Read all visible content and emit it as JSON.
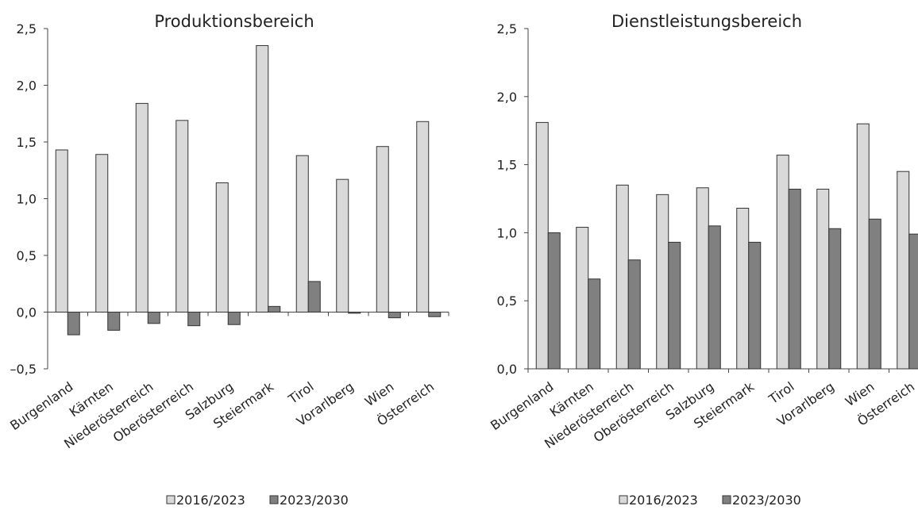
{
  "chart_data": [
    {
      "type": "bar",
      "title": "Produktionsbereich",
      "xlabel": "",
      "ylabel": "",
      "ylim": [
        -0.5,
        2.5
      ],
      "yticks": [
        "–0,5",
        "0,0",
        "0,5",
        "1,0",
        "1,5",
        "2,0",
        "2,5"
      ],
      "yticks_values": [
        -0.5,
        0.0,
        0.5,
        1.0,
        1.5,
        2.0,
        2.5
      ],
      "grid": false,
      "legend": "bottom",
      "categories": [
        "Burgenland",
        "Kärnten",
        "Niederösterreich",
        "Oberösterreich",
        "Salzburg",
        "Steiermark",
        "Tirol",
        "Vorarlberg",
        "Wien",
        "Österreich"
      ],
      "series": [
        {
          "name": "2016/2023",
          "color": "#d9d9d9",
          "values": [
            1.43,
            1.39,
            1.84,
            1.69,
            1.14,
            2.35,
            1.38,
            1.17,
            1.46,
            1.68
          ]
        },
        {
          "name": "2023/2030",
          "color": "#808080",
          "values": [
            -0.2,
            -0.16,
            -0.1,
            -0.12,
            -0.11,
            0.05,
            0.27,
            -0.01,
            -0.05,
            -0.04
          ]
        }
      ]
    },
    {
      "type": "bar",
      "title": "Dienstleistungsbereich",
      "xlabel": "",
      "ylabel": "",
      "ylim": [
        0.0,
        2.5
      ],
      "yticks": [
        "0,0",
        "0,5",
        "1,0",
        "1,5",
        "2,0",
        "2,5"
      ],
      "yticks_values": [
        0.0,
        0.5,
        1.0,
        1.5,
        2.0,
        2.5
      ],
      "grid": false,
      "legend": "bottom",
      "categories": [
        "Burgenland",
        "Kärnten",
        "Niederösterreich",
        "Oberösterreich",
        "Salzburg",
        "Steiermark",
        "Tirol",
        "Vorarlberg",
        "Wien",
        "Österreich"
      ],
      "series": [
        {
          "name": "2016/2023",
          "color": "#d9d9d9",
          "values": [
            1.81,
            1.04,
            1.35,
            1.28,
            1.33,
            1.18,
            1.57,
            1.32,
            1.8,
            1.45
          ]
        },
        {
          "name": "2023/2030",
          "color": "#808080",
          "values": [
            1.0,
            0.66,
            0.8,
            0.93,
            1.05,
            0.93,
            1.32,
            1.03,
            1.1,
            0.99
          ]
        }
      ]
    }
  ]
}
